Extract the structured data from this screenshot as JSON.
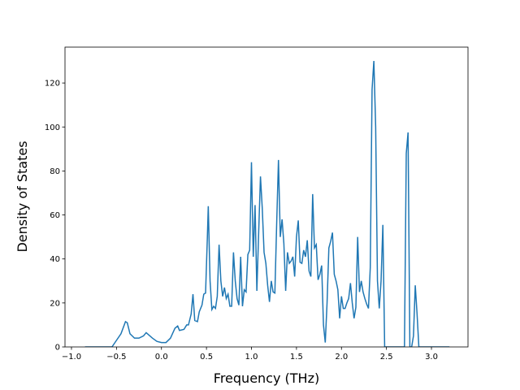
{
  "chart_data": {
    "type": "line",
    "xlabel": "Frequency (THz)",
    "ylabel": "Density of States",
    "color": "#1f77b4",
    "xlim": [
      -1.072,
      3.406
    ],
    "ylim": [
      0,
      136.3
    ],
    "xticks": [
      {
        "value": -1.0,
        "label": "−1.0"
      },
      {
        "value": -0.5,
        "label": "−0.5"
      },
      {
        "value": 0.0,
        "label": "0.0"
      },
      {
        "value": 0.5,
        "label": "0.5"
      },
      {
        "value": 1.0,
        "label": "1.0"
      },
      {
        "value": 1.5,
        "label": "1.5"
      },
      {
        "value": 2.0,
        "label": "2.0"
      },
      {
        "value": 2.5,
        "label": "2.5"
      },
      {
        "value": 3.0,
        "label": "3.0"
      }
    ],
    "yticks": [
      0,
      20,
      40,
      60,
      80,
      100,
      120
    ],
    "x": [
      -0.85,
      -0.55,
      -0.5,
      -0.45,
      -0.4,
      -0.38,
      -0.35,
      -0.3,
      -0.25,
      -0.2,
      -0.17,
      -0.1,
      -0.05,
      0,
      0.05,
      0.1,
      0.15,
      0.18,
      0.2,
      0.25,
      0.28,
      0.3,
      0.33,
      0.35,
      0.37,
      0.4,
      0.42,
      0.45,
      0.47,
      0.49,
      0.51,
      0.52,
      0.54,
      0.56,
      0.58,
      0.6,
      0.62,
      0.64,
      0.66,
      0.68,
      0.7,
      0.72,
      0.74,
      0.76,
      0.78,
      0.8,
      0.82,
      0.84,
      0.86,
      0.88,
      0.9,
      0.92,
      0.94,
      0.96,
      0.98,
      1.0,
      1.02,
      1.04,
      1.06,
      1.08,
      1.1,
      1.12,
      1.14,
      1.16,
      1.18,
      1.2,
      1.22,
      1.24,
      1.26,
      1.28,
      1.3,
      1.32,
      1.34,
      1.36,
      1.38,
      1.4,
      1.42,
      1.44,
      1.46,
      1.48,
      1.5,
      1.52,
      1.54,
      1.56,
      1.58,
      1.6,
      1.62,
      1.64,
      1.66,
      1.68,
      1.7,
      1.72,
      1.74,
      1.76,
      1.78,
      1.8,
      1.82,
      1.84,
      1.86,
      1.88,
      1.9,
      1.92,
      1.94,
      1.96,
      1.98,
      2.0,
      2.02,
      2.04,
      2.06,
      2.08,
      2.1,
      2.12,
      2.14,
      2.16,
      2.18,
      2.2,
      2.22,
      2.24,
      2.26,
      2.28,
      2.3,
      2.32,
      2.34,
      2.36,
      2.38,
      2.4,
      2.42,
      2.44,
      2.46,
      2.48,
      2.7,
      2.72,
      2.74,
      2.76,
      2.78,
      2.8,
      2.82,
      2.84,
      2.86,
      3.2
    ],
    "values": [
      0,
      0,
      3,
      6,
      11.5,
      11,
      6,
      4,
      4,
      5,
      6.5,
      4,
      2.5,
      2,
      2,
      4,
      8.5,
      9.5,
      7.5,
      8,
      10,
      10,
      15,
      24,
      12,
      11.5,
      16,
      19,
      24,
      24.5,
      50,
      64,
      30,
      17,
      18.5,
      17.5,
      23,
      46.5,
      30,
      23,
      27,
      22,
      24,
      18.5,
      18.5,
      43,
      30,
      22,
      19,
      41,
      18.5,
      26,
      25,
      42,
      44,
      84,
      41,
      64.5,
      25.5,
      52,
      77.5,
      63,
      43,
      38,
      28,
      20.5,
      30,
      25,
      24.5,
      56,
      85,
      50,
      58,
      47,
      25.5,
      43,
      38,
      39,
      41,
      32,
      50,
      57.5,
      38.5,
      38,
      44,
      41,
      48.5,
      34.5,
      32,
      69.5,
      45,
      46.5,
      30.5,
      33,
      37,
      10,
      2,
      20,
      45,
      48,
      52,
      33,
      30,
      26,
      13,
      23,
      17.5,
      17.5,
      20,
      22,
      29,
      20,
      13,
      18,
      50,
      25,
      30,
      25,
      22,
      19.5,
      17.5,
      36,
      117,
      130,
      100,
      30,
      17.5,
      30,
      55.5,
      0,
      0,
      88,
      97.5,
      0,
      0,
      5,
      28,
      15,
      0,
      0
    ]
  }
}
